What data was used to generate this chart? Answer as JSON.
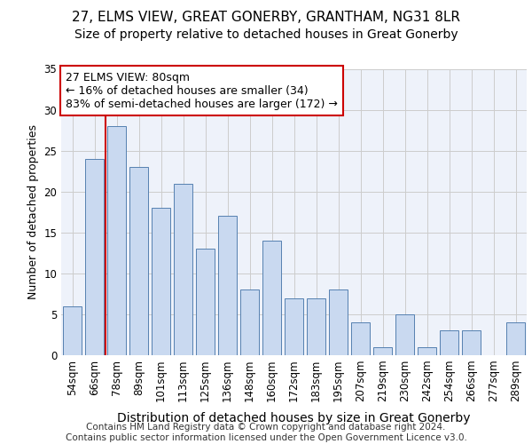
{
  "title": "27, ELMS VIEW, GREAT GONERBY, GRANTHAM, NG31 8LR",
  "subtitle": "Size of property relative to detached houses in Great Gonerby",
  "xlabel": "Distribution of detached houses by size in Great Gonerby",
  "ylabel": "Number of detached properties",
  "categories": [
    "54sqm",
    "66sqm",
    "78sqm",
    "89sqm",
    "101sqm",
    "113sqm",
    "125sqm",
    "136sqm",
    "148sqm",
    "160sqm",
    "172sqm",
    "183sqm",
    "195sqm",
    "207sqm",
    "219sqm",
    "230sqm",
    "242sqm",
    "254sqm",
    "266sqm",
    "277sqm",
    "289sqm"
  ],
  "values": [
    6,
    24,
    28,
    23,
    18,
    21,
    13,
    17,
    8,
    14,
    7,
    7,
    8,
    4,
    1,
    5,
    1,
    3,
    3,
    0,
    4
  ],
  "bar_color": "#c9d9f0",
  "bar_edge_color": "#5580b0",
  "highlight_bar_index": 2,
  "highlight_line_color": "#cc0000",
  "annotation_text": "27 ELMS VIEW: 80sqm\n← 16% of detached houses are smaller (34)\n83% of semi-detached houses are larger (172) →",
  "annotation_box_color": "#ffffff",
  "annotation_box_edge": "#cc0000",
  "ylim": [
    0,
    35
  ],
  "yticks": [
    0,
    5,
    10,
    15,
    20,
    25,
    30,
    35
  ],
  "grid_color": "#cccccc",
  "background_color": "#eef2fa",
  "footer_text": "Contains HM Land Registry data © Crown copyright and database right 2024.\nContains public sector information licensed under the Open Government Licence v3.0.",
  "title_fontsize": 11,
  "subtitle_fontsize": 10,
  "xlabel_fontsize": 10,
  "ylabel_fontsize": 9,
  "tick_fontsize": 8.5,
  "annotation_fontsize": 9,
  "footer_fontsize": 7.5
}
